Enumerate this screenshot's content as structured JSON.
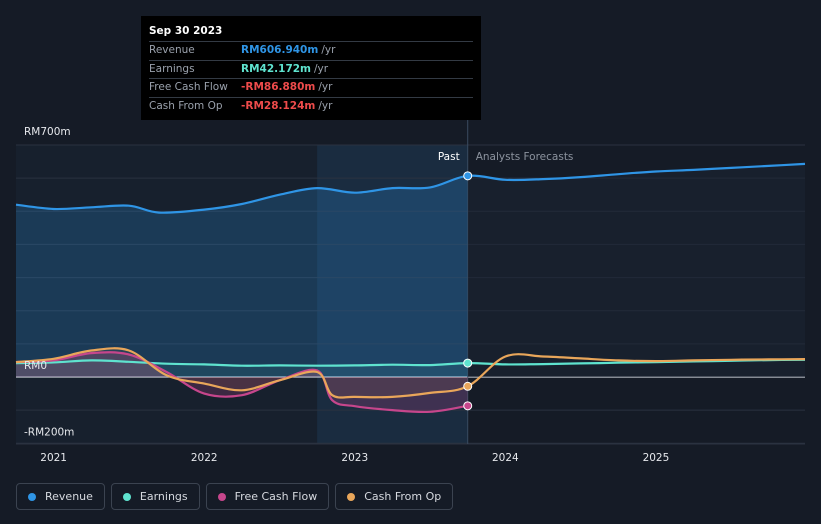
{
  "tooltip": {
    "date": "Sep 30 2023",
    "rows": [
      {
        "label": "Revenue",
        "value": "RM606.940m",
        "unit": "/yr",
        "color": "#2f95e6"
      },
      {
        "label": "Earnings",
        "value": "RM42.172m",
        "unit": "/yr",
        "color": "#5fe3cf"
      },
      {
        "label": "Free Cash Flow",
        "value": "-RM86.880m",
        "unit": "/yr",
        "color": "#ee4b4b"
      },
      {
        "label": "Cash From Op",
        "value": "-RM28.124m",
        "unit": "/yr",
        "color": "#ee4b4b"
      }
    ]
  },
  "legend": [
    {
      "label": "Revenue",
      "color": "#2f95e6"
    },
    {
      "label": "Earnings",
      "color": "#5fe3cf"
    },
    {
      "label": "Free Cash Flow",
      "color": "#c6468c"
    },
    {
      "label": "Cash From Op",
      "color": "#e9a65a"
    }
  ],
  "chart_data": {
    "type": "line",
    "title": "",
    "xlabel": "",
    "ylabel": "",
    "ylim": [
      -200,
      700
    ],
    "xlim": [
      2020.75,
      2025.99
    ],
    "y_ticks": [
      {
        "value": 700,
        "label": "RM700m"
      },
      {
        "value": 0,
        "label": "RM0"
      },
      {
        "value": -200,
        "label": "-RM200m"
      }
    ],
    "x_ticks": [
      {
        "value": 2021,
        "label": "2021"
      },
      {
        "value": 2022,
        "label": "2022"
      },
      {
        "value": 2023,
        "label": "2023"
      },
      {
        "value": 2024,
        "label": "2024"
      },
      {
        "value": 2025,
        "label": "2025"
      }
    ],
    "past_label": "Past",
    "forecast_label": "Analysts Forecasts",
    "divider_x": 2023.75,
    "highlight_start_x": 2022.75,
    "grid": true,
    "legend_position": "bottom",
    "series": [
      {
        "name": "Revenue",
        "color": "#2f95e6",
        "x": [
          2020.75,
          2021.0,
          2021.25,
          2021.5,
          2021.7,
          2022.0,
          2022.25,
          2022.5,
          2022.75,
          2023.0,
          2023.25,
          2023.5,
          2023.75,
          2024.0,
          2024.25,
          2024.5,
          2024.75,
          2025.0,
          2025.25,
          2025.5,
          2025.75,
          2025.99
        ],
        "y": [
          520,
          507,
          512,
          517,
          496,
          505,
          522,
          550,
          570,
          556,
          570,
          572,
          607,
          595,
          597,
          603,
          612,
          620,
          625,
          631,
          637,
          643
        ]
      },
      {
        "name": "Earnings",
        "color": "#5fe3cf",
        "x": [
          2020.75,
          2021.0,
          2021.25,
          2021.5,
          2021.75,
          2022.0,
          2022.25,
          2022.5,
          2022.75,
          2023.0,
          2023.25,
          2023.5,
          2023.75,
          2024.0,
          2024.25,
          2024.5,
          2024.75,
          2025.0,
          2025.25,
          2025.5,
          2025.75,
          2025.99
        ],
        "y": [
          42,
          44,
          50,
          46,
          40,
          38,
          34,
          35,
          34,
          35,
          37,
          36,
          42,
          38,
          39,
          41,
          43,
          45,
          47,
          49,
          51,
          52
        ]
      },
      {
        "name": "Free Cash Flow",
        "color": "#c6468c",
        "x": [
          2020.75,
          2021.0,
          2021.25,
          2021.5,
          2021.75,
          2022.0,
          2022.25,
          2022.5,
          2022.75,
          2022.85,
          2023.0,
          2023.25,
          2023.5,
          2023.75
        ],
        "y": [
          45,
          50,
          72,
          68,
          15,
          -50,
          -55,
          -10,
          20,
          -70,
          -88,
          -100,
          -105,
          -87
        ]
      },
      {
        "name": "Cash From Op",
        "color": "#e9a65a",
        "x": [
          2020.75,
          2021.0,
          2021.25,
          2021.5,
          2021.75,
          2022.0,
          2022.25,
          2022.5,
          2022.75,
          2022.85,
          2023.0,
          2023.25,
          2023.5,
          2023.75,
          2024.0,
          2024.25,
          2024.5,
          2024.75,
          2025.0,
          2025.25,
          2025.5,
          2025.75,
          2025.99
        ],
        "y": [
          45,
          55,
          80,
          80,
          5,
          -20,
          -40,
          -10,
          15,
          -55,
          -60,
          -60,
          -48,
          -28,
          62,
          62,
          56,
          50,
          48,
          50,
          52,
          53,
          54
        ]
      }
    ]
  }
}
